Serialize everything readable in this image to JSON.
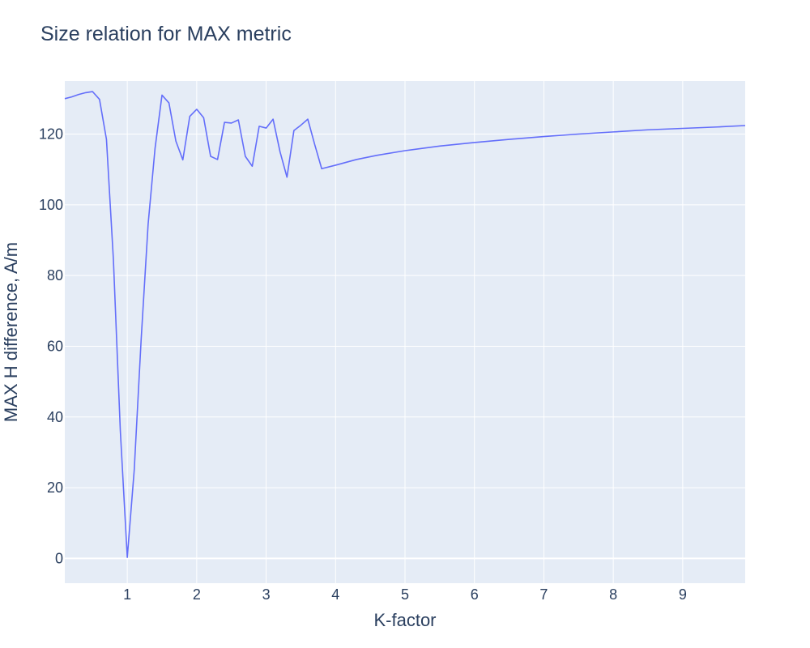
{
  "chart_data": {
    "type": "line",
    "title": "Size relation for MAX metric",
    "xlabel": "K-factor",
    "ylabel": "MAX H difference, A/m",
    "xlim": [
      0.1,
      9.9
    ],
    "ylim": [
      -7,
      135
    ],
    "x_ticks": [
      1,
      2,
      3,
      4,
      5,
      6,
      7,
      8,
      9
    ],
    "y_ticks": [
      0,
      20,
      40,
      60,
      80,
      100,
      120
    ],
    "grid": true,
    "legend": "none",
    "colors": {
      "plot_background": "#e5ecf6",
      "line": "#636efa",
      "text": "#2a3f5f",
      "grid": "#ffffff"
    },
    "series": [
      {
        "x": [
          0.1,
          0.2,
          0.3,
          0.4,
          0.5,
          0.6,
          0.7,
          0.8,
          0.9,
          1.0,
          1.1,
          1.2,
          1.3,
          1.4,
          1.5,
          1.6,
          1.7,
          1.8,
          1.9,
          2.0,
          2.1,
          2.2,
          2.3,
          2.4,
          2.5,
          2.6,
          2.7,
          2.8,
          2.9,
          3.0,
          3.1,
          3.2,
          3.3,
          3.4,
          3.5,
          3.6,
          3.7,
          3.8,
          4.0,
          4.3,
          4.6,
          5.0,
          5.5,
          6.0,
          6.5,
          7.0,
          7.5,
          8.0,
          8.5,
          9.0,
          9.5,
          9.9
        ],
        "y": [
          130,
          130.5,
          131.2,
          131.7,
          132,
          129.8,
          118.5,
          84.5,
          36,
          0.3,
          25,
          62,
          94.5,
          116,
          131,
          128.8,
          118,
          112.7,
          125,
          127,
          124.6,
          113.7,
          112.8,
          123.3,
          123.1,
          124,
          113.7,
          110.9,
          122.2,
          121.7,
          124.2,
          115,
          107.8,
          121,
          122.5,
          124.2,
          117,
          110.2,
          111.2,
          112.8,
          114,
          115.3,
          116.6,
          117.6,
          118.5,
          119.3,
          120,
          120.6,
          121.2,
          121.6,
          122,
          122.4
        ]
      }
    ]
  }
}
